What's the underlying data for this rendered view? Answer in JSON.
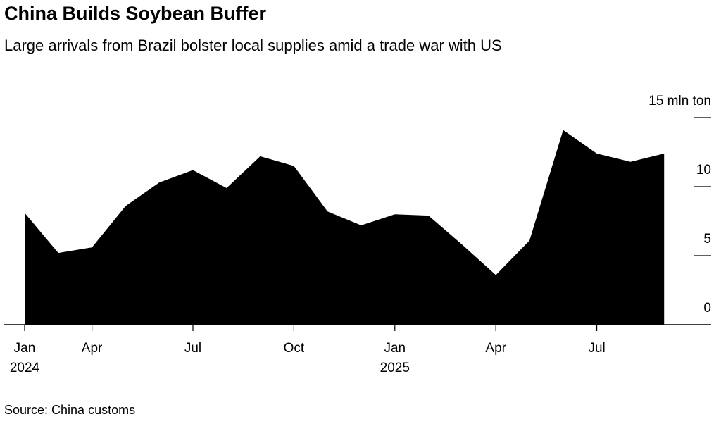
{
  "chart_data": {
    "type": "area",
    "title": "China Builds Soybean Buffer",
    "subtitle": "Large arrivals from Brazil bolster local supplies amid a trade war with US",
    "source": "Source: China customs",
    "categories": [
      "Jan 2024",
      null,
      "Apr",
      null,
      null,
      "Jul",
      null,
      null,
      "Oct",
      null,
      null,
      "Jan 2025",
      null,
      null,
      "Apr",
      null,
      null,
      "Jul",
      null,
      null
    ],
    "values": [
      8.1,
      5.2,
      5.6,
      8.6,
      10.3,
      11.2,
      9.9,
      12.2,
      11.5,
      8.2,
      7.2,
      8.0,
      7.9,
      5.8,
      3.6,
      6.1,
      14.1,
      12.4,
      11.8,
      12.4
    ],
    "color": "#000000",
    "ylim": [
      0,
      15
    ],
    "yticks": [
      0,
      5,
      10,
      {
        "value": 15,
        "label": "15 mln ton"
      }
    ]
  }
}
